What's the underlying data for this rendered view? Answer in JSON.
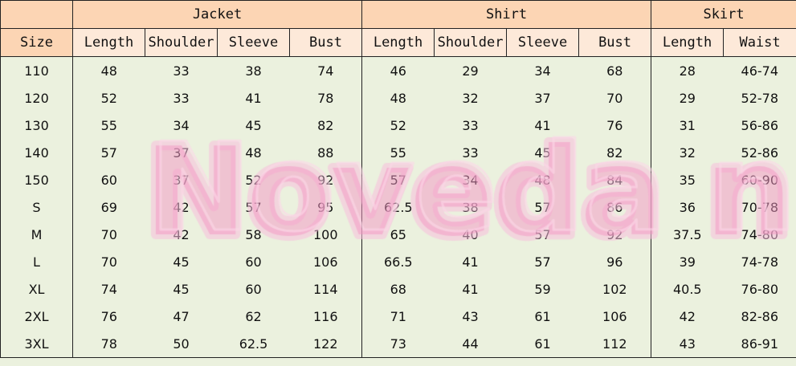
{
  "groups": [
    {
      "label": "",
      "span": 1
    },
    {
      "label": "Jacket",
      "span": 4
    },
    {
      "label": "Shirt",
      "span": 4
    },
    {
      "label": "Skirt",
      "span": 2
    }
  ],
  "columns": [
    "Size",
    "Length",
    "Shoulder",
    "Sleeve",
    "Bust",
    "Length",
    "Shoulder",
    "Sleeve",
    "Bust",
    "Length",
    "Waist"
  ],
  "rows": [
    [
      "110",
      "48",
      "33",
      "38",
      "74",
      "46",
      "29",
      "34",
      "68",
      "28",
      "46-74"
    ],
    [
      "120",
      "52",
      "33",
      "41",
      "78",
      "48",
      "32",
      "37",
      "70",
      "29",
      "52-78"
    ],
    [
      "130",
      "55",
      "34",
      "45",
      "82",
      "52",
      "33",
      "41",
      "76",
      "31",
      "56-86"
    ],
    [
      "140",
      "57",
      "37",
      "48",
      "88",
      "55",
      "33",
      "45",
      "82",
      "32",
      "52-86"
    ],
    [
      "150",
      "60",
      "37",
      "52",
      "92",
      "57",
      "34",
      "48",
      "84",
      "35",
      "60-90"
    ],
    [
      "S",
      "69",
      "42",
      "57",
      "95",
      "62.5",
      "38",
      "57",
      "86",
      "36",
      "70-78"
    ],
    [
      "M",
      "70",
      "42",
      "58",
      "100",
      "65",
      "40",
      "57",
      "92",
      "37.5",
      "74-80"
    ],
    [
      "L",
      "70",
      "45",
      "60",
      "106",
      "66.5",
      "41",
      "57",
      "96",
      "39",
      "74-78"
    ],
    [
      "XL",
      "74",
      "45",
      "60",
      "114",
      "68",
      "41",
      "59",
      "102",
      "40.5",
      "76-80"
    ],
    [
      "2XL",
      "76",
      "47",
      "62",
      "116",
      "71",
      "43",
      "61",
      "106",
      "42",
      "82-86"
    ],
    [
      "3XL",
      "78",
      "50",
      "62.5",
      "122",
      "73",
      "44",
      "61",
      "112",
      "43",
      "86-91"
    ]
  ],
  "watermark": "Noveda n",
  "colors": {
    "group_header": "#fcd5b4",
    "sub_header": "#fde9d9",
    "body": "#ebf1de",
    "watermark": "#f496c4"
  }
}
